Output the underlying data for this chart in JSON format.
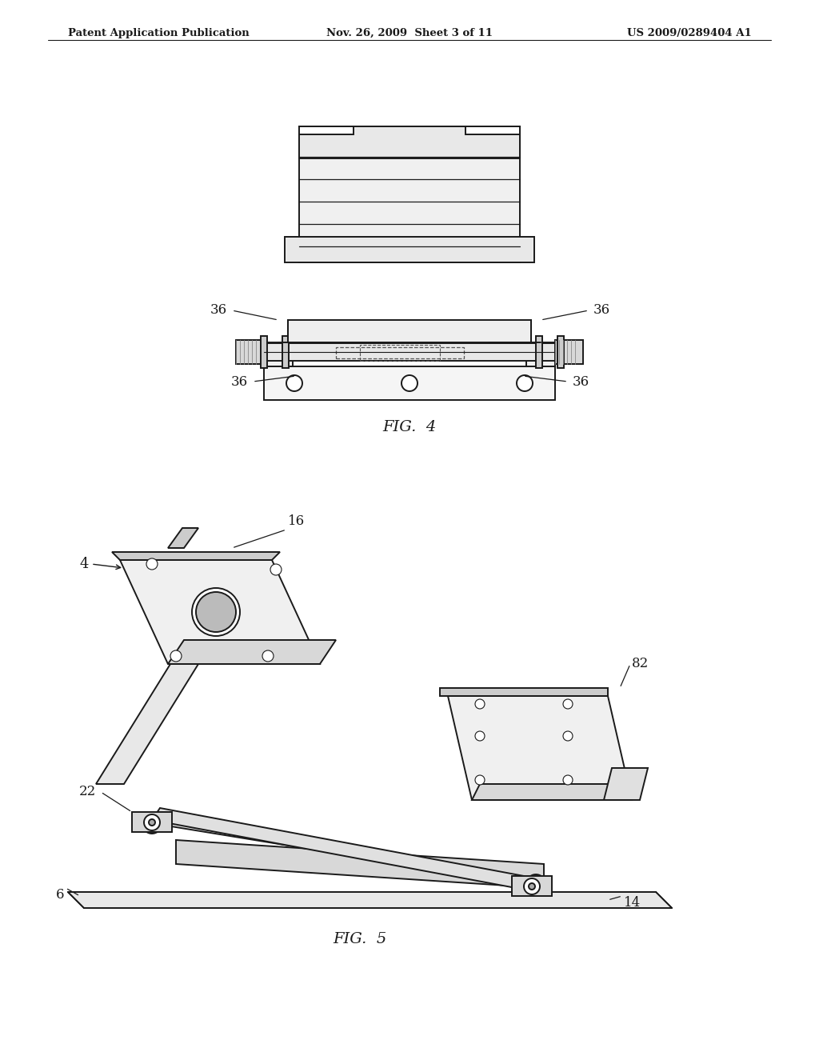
{
  "bg_color": "#ffffff",
  "header_left": "Patent Application Publication",
  "header_mid": "Nov. 26, 2009  Sheet 3 of 11",
  "header_right": "US 2009/0289404 A1",
  "fig4_label": "FIG.  4",
  "fig5_label": "FIG.  5",
  "line_color": "#1a1a1a",
  "label_color": "#1a1a1a",
  "dashed_color": "#555555"
}
